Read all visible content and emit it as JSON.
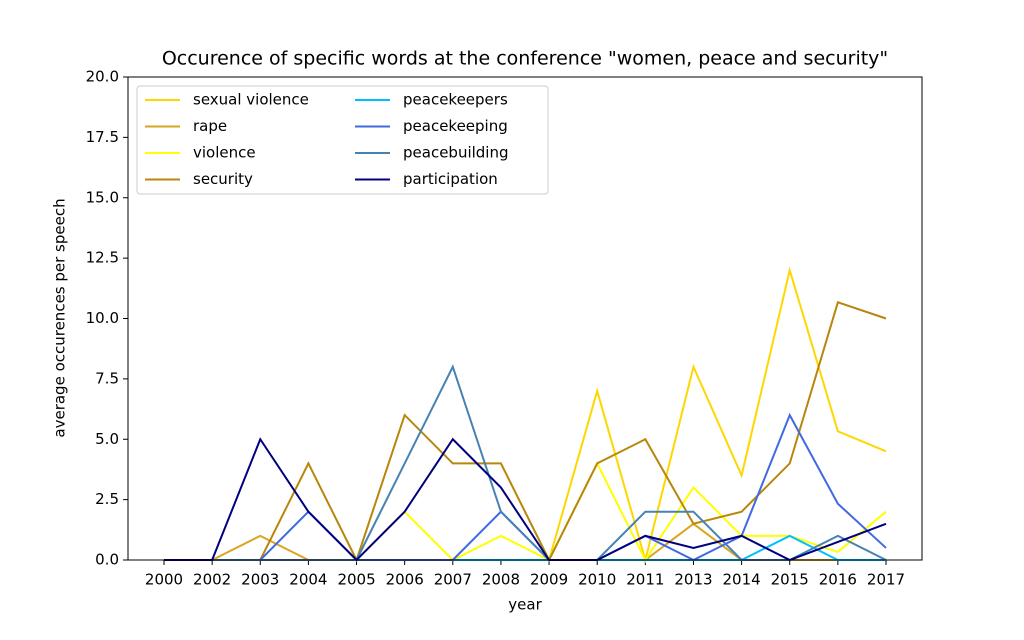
{
  "chart_data": {
    "type": "line",
    "title": "Occurence of specific words at the conference \"women, peace and security\"",
    "xlabel": "year",
    "ylabel": "average occurences per speech",
    "categories": [
      "2000",
      "2002",
      "2003",
      "2004",
      "2005",
      "2006",
      "2007",
      "2008",
      "2009",
      "2010",
      "2011",
      "2013",
      "2014",
      "2015",
      "2016",
      "2017"
    ],
    "ylim": [
      0,
      20
    ],
    "yticks": [
      {
        "value": 0,
        "label": "0.0"
      },
      {
        "value": 2.5,
        "label": "2.5"
      },
      {
        "value": 5,
        "label": "5.0"
      },
      {
        "value": 7.5,
        "label": "7.5"
      },
      {
        "value": 10,
        "label": "10.0"
      },
      {
        "value": 12.5,
        "label": "12.5"
      },
      {
        "value": 15,
        "label": "15.0"
      },
      {
        "value": 17.5,
        "label": "17.5"
      },
      {
        "value": 20,
        "label": "20.0"
      }
    ],
    "legend": "upper left",
    "series": [
      {
        "name": "sexual violence",
        "color": "#ffd700",
        "values": [
          0,
          0,
          0,
          0,
          0,
          0,
          0,
          0,
          0,
          7,
          0,
          8,
          3.5,
          12,
          5.33,
          4.5
        ]
      },
      {
        "name": "rape",
        "color": "#daa520",
        "values": [
          0,
          0,
          1,
          0,
          0,
          0,
          0,
          0,
          0,
          0,
          0,
          1.5,
          0,
          0,
          0,
          0
        ]
      },
      {
        "name": "violence",
        "color": "#ffff00",
        "values": [
          0,
          0,
          0,
          0,
          0,
          2,
          0,
          1,
          0,
          4,
          0,
          3,
          1,
          1,
          0.33,
          2
        ]
      },
      {
        "name": "security",
        "color": "#b8860b",
        "values": [
          0,
          0,
          0,
          4,
          0,
          6,
          4,
          4,
          0,
          4,
          5,
          1.5,
          2,
          4,
          10.67,
          10
        ]
      },
      {
        "name": "peacekeepers",
        "color": "#00bfff",
        "values": [
          0,
          0,
          0,
          0,
          0,
          0,
          0,
          0,
          0,
          0,
          0,
          0,
          0,
          1,
          0,
          0
        ]
      },
      {
        "name": "peacekeeping",
        "color": "#4169e1",
        "values": [
          0,
          0,
          0,
          2,
          0,
          0,
          0,
          2,
          0,
          0,
          1,
          0,
          1,
          6,
          2.33,
          0.5
        ]
      },
      {
        "name": "peacebuilding",
        "color": "#4682b4",
        "values": [
          0,
          0,
          0,
          0,
          0,
          4,
          8,
          2,
          0,
          0,
          2,
          2,
          0,
          0,
          1,
          0
        ]
      },
      {
        "name": "participation",
        "color": "#000080",
        "values": [
          0,
          0,
          5,
          2,
          0,
          2,
          5,
          3,
          0,
          0,
          1,
          0.5,
          1,
          0,
          0.75,
          1.5
        ]
      }
    ]
  }
}
